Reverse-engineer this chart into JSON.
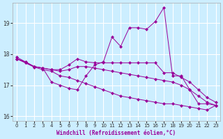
{
  "title": "",
  "xlabel": "Windchill (Refroidissement éolien,°C)",
  "ylabel": "",
  "background_color": "#cceeff",
  "grid_color": "#ffffff",
  "line_color": "#990099",
  "xlim": [
    -0.5,
    23.5
  ],
  "ylim": [
    15.85,
    19.65
  ],
  "yticks": [
    16,
    17,
    18,
    19
  ],
  "xticks": [
    0,
    1,
    2,
    3,
    4,
    5,
    6,
    7,
    8,
    9,
    10,
    11,
    12,
    13,
    14,
    15,
    16,
    17,
    18,
    19,
    20,
    21,
    22,
    23
  ],
  "lines": [
    {
      "x": [
        0,
        1,
        2,
        3,
        4,
        5,
        6,
        7,
        8,
        9,
        10,
        11,
        12,
        13,
        14,
        15,
        16,
        17,
        18,
        19,
        20,
        21,
        22,
        23
      ],
      "y": [
        17.9,
        17.75,
        17.6,
        17.55,
        17.1,
        17.0,
        16.9,
        16.85,
        17.3,
        17.65,
        17.75,
        18.55,
        18.25,
        18.85,
        18.85,
        18.8,
        19.05,
        19.5,
        17.3,
        17.3,
        16.85,
        16.4,
        16.4,
        16.35
      ]
    },
    {
      "x": [
        0,
        1,
        2,
        3,
        4,
        5,
        6,
        7,
        8,
        9,
        10,
        11,
        12,
        13,
        14,
        15,
        16,
        17,
        18,
        19,
        20,
        21,
        22,
        23
      ],
      "y": [
        17.85,
        17.75,
        17.6,
        17.55,
        17.5,
        17.5,
        17.65,
        17.85,
        17.75,
        17.72,
        17.72,
        17.72,
        17.72,
        17.72,
        17.72,
        17.72,
        17.72,
        17.4,
        17.4,
        17.25,
        17.1,
        16.85,
        16.6,
        16.45
      ]
    },
    {
      "x": [
        0,
        1,
        2,
        3,
        4,
        5,
        6,
        7,
        8,
        9,
        10,
        11,
        12,
        13,
        14,
        15,
        16,
        17,
        18,
        19,
        20,
        21,
        22,
        23
      ],
      "y": [
        17.85,
        17.72,
        17.6,
        17.55,
        17.5,
        17.45,
        17.5,
        17.6,
        17.6,
        17.55,
        17.5,
        17.45,
        17.4,
        17.35,
        17.3,
        17.25,
        17.2,
        17.15,
        17.1,
        17.0,
        16.85,
        16.65,
        16.45,
        16.35
      ]
    },
    {
      "x": [
        0,
        1,
        2,
        3,
        4,
        5,
        6,
        7,
        8,
        9,
        10,
        11,
        12,
        13,
        14,
        15,
        16,
        17,
        18,
        19,
        20,
        21,
        22,
        23
      ],
      "y": [
        17.85,
        17.72,
        17.58,
        17.5,
        17.45,
        17.3,
        17.25,
        17.15,
        17.05,
        16.95,
        16.85,
        16.75,
        16.65,
        16.6,
        16.55,
        16.5,
        16.45,
        16.4,
        16.4,
        16.35,
        16.3,
        16.25,
        16.2,
        16.35
      ]
    }
  ]
}
